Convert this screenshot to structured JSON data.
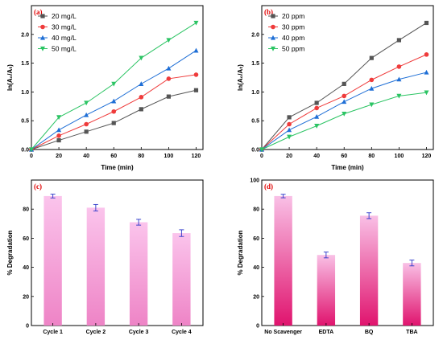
{
  "chart_data": [
    {
      "panel_label": "(a)",
      "type": "line",
      "xlabel": "Time (min)",
      "ylabel": "ln(A₀/Aₜ)",
      "x": [
        0,
        20,
        40,
        60,
        80,
        100,
        120
      ],
      "xticks": [
        "0",
        "20",
        "40",
        "60",
        "80",
        "100",
        "120"
      ],
      "yticks": [
        "0.0",
        "0.5",
        "1.0",
        "1.5",
        "2.0"
      ],
      "xlim": [
        0,
        125
      ],
      "ylim": [
        0,
        2.5
      ],
      "legend_position": "top-left",
      "series": [
        {
          "name": "20 mg/L",
          "color": "#555555",
          "marker": "square",
          "values": [
            0,
            0.16,
            0.31,
            0.46,
            0.7,
            0.92,
            1.03
          ]
        },
        {
          "name": "30 mg/L",
          "color": "#ef3b3b",
          "marker": "circle",
          "values": [
            0,
            0.24,
            0.44,
            0.66,
            0.91,
            1.23,
            1.3
          ]
        },
        {
          "name": "40 mg/L",
          "color": "#1f6fd6",
          "marker": "triangle-up",
          "values": [
            0,
            0.34,
            0.6,
            0.84,
            1.14,
            1.41,
            1.72
          ]
        },
        {
          "name": "50 mg/L",
          "color": "#2bc463",
          "marker": "triangle-down",
          "values": [
            0,
            0.56,
            0.81,
            1.14,
            1.59,
            1.9,
            2.2
          ]
        }
      ]
    },
    {
      "panel_label": "(b)",
      "type": "line",
      "xlabel": "Time (min)",
      "ylabel": "ln(A₀/Aₜ)",
      "x": [
        0,
        20,
        40,
        60,
        80,
        100,
        120
      ],
      "xticks": [
        "0",
        "20",
        "40",
        "60",
        "80",
        "100",
        "120"
      ],
      "yticks": [
        "0.0",
        "0.5",
        "1.0",
        "1.5",
        "2.0"
      ],
      "xlim": [
        0,
        125
      ],
      "ylim": [
        0,
        2.5
      ],
      "legend_position": "top-left",
      "series": [
        {
          "name": "20 ppm",
          "color": "#555555",
          "marker": "square",
          "values": [
            0,
            0.56,
            0.81,
            1.14,
            1.59,
            1.9,
            2.2
          ]
        },
        {
          "name": "30 ppm",
          "color": "#ef3b3b",
          "marker": "circle",
          "values": [
            0,
            0.44,
            0.72,
            0.93,
            1.21,
            1.44,
            1.65
          ]
        },
        {
          "name": "40 ppm",
          "color": "#1f6fd6",
          "marker": "triangle-up",
          "values": [
            0,
            0.34,
            0.57,
            0.83,
            1.06,
            1.22,
            1.34
          ]
        },
        {
          "name": "50 ppm",
          "color": "#2bc463",
          "marker": "triangle-down",
          "values": [
            0,
            0.22,
            0.41,
            0.62,
            0.78,
            0.93,
            0.99
          ]
        }
      ]
    },
    {
      "panel_label": "(c)",
      "type": "bar",
      "xlabel": "",
      "ylabel": "% Degradation",
      "categories": [
        "Cycle 1",
        "Cycle 2",
        "Cycle 3",
        "Cycle 4"
      ],
      "values": [
        89,
        81,
        71,
        63.5
      ],
      "errors": [
        1.3,
        2.2,
        2.0,
        2.3
      ],
      "yticks": [
        "0",
        "20",
        "40",
        "60",
        "80"
      ],
      "ylim": [
        0,
        100
      ],
      "bar_color_top": "#fbc4ec",
      "bar_color_bottom": "#ee84c6"
    },
    {
      "panel_label": "(d)",
      "type": "bar",
      "xlabel": "",
      "ylabel": "% Degradation",
      "categories": [
        "No Scavenger",
        "EDTA",
        "BQ",
        "TBA"
      ],
      "values": [
        89,
        48.5,
        75.5,
        43
      ],
      "errors": [
        1.2,
        2.0,
        2.0,
        2.0
      ],
      "yticks": [
        "0",
        "20",
        "40",
        "60",
        "80",
        "100"
      ],
      "ylim": [
        0,
        100
      ],
      "bar_color_top": "#f9c0e6",
      "bar_color_bottom": "#e0146e"
    }
  ]
}
